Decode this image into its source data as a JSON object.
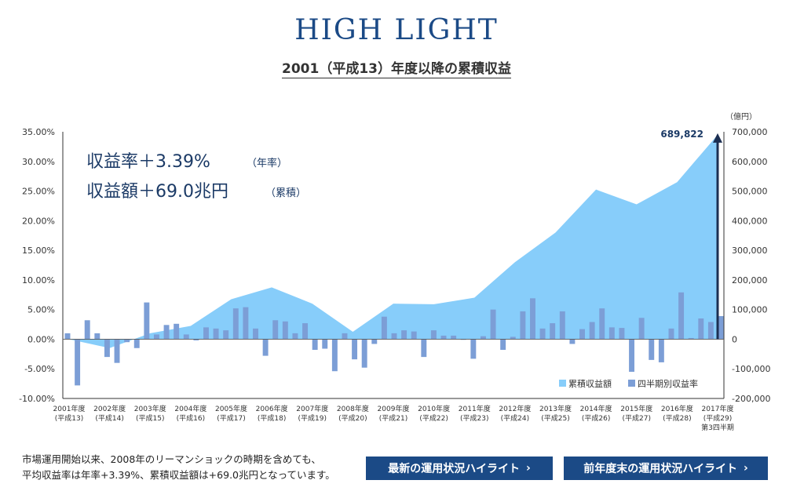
{
  "header": {
    "title": "HIGH LIGHT",
    "subtitle": "2001（平成13）年度以降の累積収益"
  },
  "chart_data": {
    "type": "bar+area",
    "left_axis": {
      "ticks": [
        "35.00%",
        "30.00%",
        "25.00%",
        "20.00%",
        "15.00%",
        "10.00%",
        "5.00%",
        "0.00%",
        "-5.00%",
        "-10.00%"
      ],
      "ylim": [
        -10,
        35
      ]
    },
    "right_axis": {
      "unit": "（億円）",
      "ticks": [
        "700,000",
        "600,000",
        "500,000",
        "400,000",
        "300,000",
        "200,000",
        "100,000",
        "0",
        "-100,000",
        "-200,000"
      ],
      "ylim": [
        -200000,
        700000
      ]
    },
    "categories": [
      {
        "year": "2001年度",
        "era": "(平成13)"
      },
      {
        "year": "2002年度",
        "era": "(平成14)"
      },
      {
        "year": "2003年度",
        "era": "(平成15)"
      },
      {
        "year": "2004年度",
        "era": "(平成16)"
      },
      {
        "year": "2005年度",
        "era": "(平成17)"
      },
      {
        "year": "2006年度",
        "era": "(平成18)"
      },
      {
        "year": "2007年度",
        "era": "(平成19)"
      },
      {
        "year": "2008年度",
        "era": "(平成20)"
      },
      {
        "year": "2009年度",
        "era": "(平成21)"
      },
      {
        "year": "2010年度",
        "era": "(平成22)"
      },
      {
        "year": "2011年度",
        "era": "(平成23)"
      },
      {
        "year": "2012年度",
        "era": "(平成24)"
      },
      {
        "year": "2013年度",
        "era": "(平成25)"
      },
      {
        "year": "2014年度",
        "era": "(平成26)"
      },
      {
        "year": "2015年度",
        "era": "(平成27)"
      },
      {
        "year": "2016年度",
        "era": "(平成28)"
      },
      {
        "year": "2017年度",
        "era": "(平成29)",
        "extra": "第3四半期"
      }
    ],
    "quarterly_return_pct": [
      1.0,
      -7.8,
      3.2,
      1.0,
      -3.0,
      -4.0,
      -0.5,
      -1.5,
      6.2,
      0.8,
      2.4,
      2.6,
      0.8,
      -0.2,
      2.0,
      1.8,
      1.5,
      5.2,
      5.4,
      1.8,
      -2.8,
      3.2,
      3.0,
      1.0,
      2.7,
      -1.8,
      -1.6,
      -5.4,
      1.0,
      -3.4,
      -4.8,
      -0.8,
      3.8,
      1.0,
      1.5,
      1.3,
      -3.0,
      1.5,
      0.6,
      0.6,
      -0.1,
      -3.3,
      0.5,
      5.0,
      -1.8,
      0.4,
      4.7,
      6.9,
      1.8,
      2.7,
      4.7,
      -0.8,
      1.7,
      2.9,
      5.2,
      2.0,
      1.9,
      -5.5,
      3.6,
      -3.5,
      -3.9,
      1.8,
      7.9,
      0.2,
      3.5,
      2.9,
      3.9
    ],
    "cumulative_oku_yen": [
      {
        "x": 0,
        "y": 0
      },
      {
        "x": 1,
        "y": -30000
      },
      {
        "x": 2,
        "y": 20000
      },
      {
        "x": 3,
        "y": 45000
      },
      {
        "x": 4,
        "y": 135000
      },
      {
        "x": 5,
        "y": 175000
      },
      {
        "x": 6,
        "y": 120000
      },
      {
        "x": 7,
        "y": 25000
      },
      {
        "x": 8,
        "y": 120000
      },
      {
        "x": 9,
        "y": 118000
      },
      {
        "x": 10,
        "y": 140000
      },
      {
        "x": 11,
        "y": 260000
      },
      {
        "x": 12,
        "y": 360000
      },
      {
        "x": 13,
        "y": 505000
      },
      {
        "x": 14,
        "y": 455000
      },
      {
        "x": 15,
        "y": 530000
      },
      {
        "x": 16,
        "y": 689822
      }
    ],
    "peak_label": "689,822",
    "legend": {
      "area": "累積収益額",
      "bar": "四半期別収益率",
      "position": "bottom-right"
    },
    "annotation": {
      "line1_main": "収益率＋3.39%",
      "line1_sub": "（年率）",
      "line2_main": "収益額＋69.0兆円",
      "line2_sub": "（累積）"
    },
    "colors": {
      "area": "#87cdfa",
      "bar": "#7c9ed6",
      "arrow": "#1c2f52",
      "text": "#1b3a66"
    }
  },
  "footer": {
    "note_line1": "市場運用開始以来、2008年のリーマンショックの時期を含めても、",
    "note_line2": "平均収益率は年率+3.39%、累積収益額は+69.0兆円となっています。",
    "button_latest": "最新の運用状況ハイライト",
    "button_prev": "前年度末の運用状況ハイライト",
    "arrow": "›"
  }
}
